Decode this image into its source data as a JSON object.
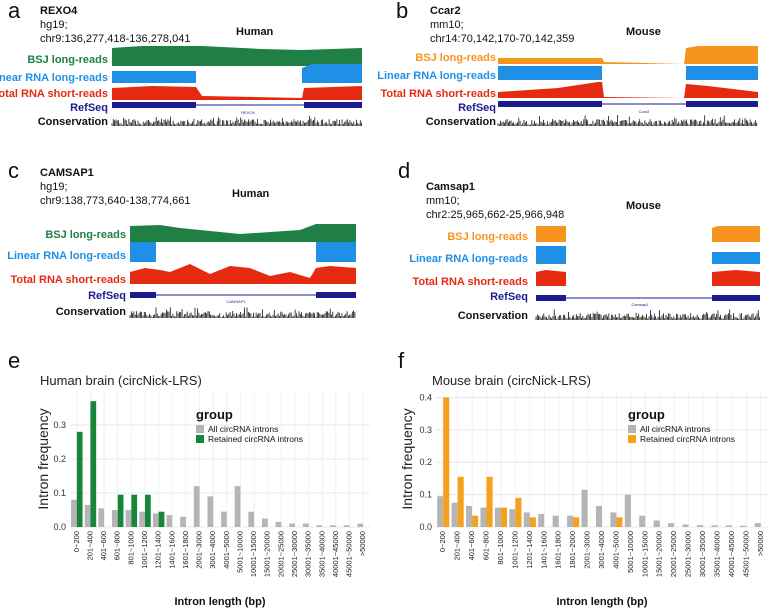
{
  "colors": {
    "bsj_human": "#1f7f45",
    "bsj_mouse": "#f7941d",
    "linear": "#1e90e6",
    "total": "#e62a12",
    "refseq": "#1b1b8f",
    "conservation": "#111111",
    "all_introns": "#b5b5b5",
    "retained_human": "#18853a",
    "retained_mouse": "#f5a11c",
    "grid": "#e8e8e8",
    "panel_bg": "#ffffff"
  },
  "panels": {
    "a": {
      "letter": "a",
      "gene": "REXO4",
      "assembly": "hg19;",
      "locus": "chr9:136,277,418-136,278,041",
      "species": "Human",
      "refseq_label": "REXO4"
    },
    "b": {
      "letter": "b",
      "gene": "Ccar2",
      "assembly": "mm10;",
      "locus": "chr14:70,142,170-70,142,359",
      "species": "Mouse",
      "refseq_label": "Ccar2"
    },
    "c": {
      "letter": "c",
      "gene": "CAMSAP1",
      "assembly": "hg19;",
      "locus": "chr9:138,773,640-138,774,661",
      "species": "Human",
      "refseq_label": "CAMSAP1"
    },
    "d": {
      "letter": "d",
      "gene": "Camsap1",
      "assembly": "mm10;",
      "locus": "chr2:25,965,662-25,966,948",
      "species": "Mouse",
      "refseq_label": "Camsap1"
    },
    "e": {
      "letter": "e"
    },
    "f": {
      "letter": "f"
    }
  },
  "track_labels": {
    "bsj": "BSJ long-reads",
    "linear": "Linear RNA long-reads",
    "total": "Total RNA short-reads",
    "refseq": "RefSeq",
    "conservation": "Conservation"
  },
  "chart_data": [
    {
      "type": "bar",
      "title": "Human brain (circNick-LRS)",
      "xlabel": "Intron length (bp)",
      "ylabel": "Intron frequency",
      "ylim": [
        0,
        0.4
      ],
      "yticks": [
        "0.0",
        "0.1",
        "0.2",
        "0.3"
      ],
      "legend_title": "group",
      "legend_position": "top-right",
      "categories": [
        "0~200",
        "201~400",
        "401~600",
        "601~800",
        "801~1000",
        "1001~1200",
        "1201~1400",
        "1401~1600",
        "1601~1800",
        "2001~3000",
        "3001~4000",
        "4001~5000",
        "5001~10000",
        "10001~15000",
        "15001~20000",
        "20001~25000",
        "25001~30000",
        "30001~35000",
        "35001~40000",
        "40001~45000",
        "45001~50000",
        ">50000"
      ],
      "series": [
        {
          "name": "All circRNA introns",
          "values": [
            0.08,
            0.065,
            0.055,
            0.05,
            0.05,
            0.045,
            0.04,
            0.035,
            0.03,
            0.12,
            0.09,
            0.045,
            0.12,
            0.045,
            0.025,
            0.015,
            0.01,
            0.01,
            0.005,
            0.005,
            0.005,
            0.01
          ]
        },
        {
          "name": "Retained circRNA introns",
          "values": [
            0.28,
            0.37,
            0.0,
            0.095,
            0.095,
            0.095,
            0.045,
            0.0,
            0.0,
            0.0,
            0.0,
            0.0,
            0.0,
            0.0,
            0.0,
            0.0,
            0.0,
            0.0,
            0.0,
            0.0,
            0.0,
            0.0
          ]
        }
      ]
    },
    {
      "type": "bar",
      "title": "Mouse brain (circNick-LRS)",
      "xlabel": "Intron length (bp)",
      "ylabel": "Intron frequency",
      "ylim": [
        0,
        0.42
      ],
      "yticks": [
        "0.0",
        "0.1",
        "0.2",
        "0.3",
        "0.4"
      ],
      "legend_title": "group",
      "legend_position": "top-right",
      "categories": [
        "0~200",
        "201~400",
        "401~600",
        "601~800",
        "801~1000",
        "1001~1200",
        "1201~1400",
        "1401~1600",
        "1601~1800",
        "1801~2000",
        "2001~3000",
        "3001~4000",
        "4001~5000",
        "5001~10000",
        "10001~15000",
        "15001~20000",
        "20001~25000",
        "25001~30000",
        "30001~35000",
        "35001~40000",
        "40001~45000",
        "45001~50000",
        ">50000"
      ],
      "series": [
        {
          "name": "All circRNA introns",
          "values": [
            0.095,
            0.075,
            0.065,
            0.06,
            0.06,
            0.055,
            0.045,
            0.04,
            0.035,
            0.035,
            0.115,
            0.065,
            0.045,
            0.1,
            0.035,
            0.02,
            0.012,
            0.008,
            0.006,
            0.005,
            0.005,
            0.004,
            0.012
          ]
        },
        {
          "name": "Retained circRNA introns",
          "values": [
            0.4,
            0.155,
            0.035,
            0.155,
            0.06,
            0.09,
            0.03,
            0.0,
            0.0,
            0.03,
            0.0,
            0.0,
            0.03,
            0.0,
            0.0,
            0.0,
            0.0,
            0.0,
            0.0,
            0.0,
            0.0,
            0.0,
            0.0
          ]
        }
      ]
    }
  ]
}
